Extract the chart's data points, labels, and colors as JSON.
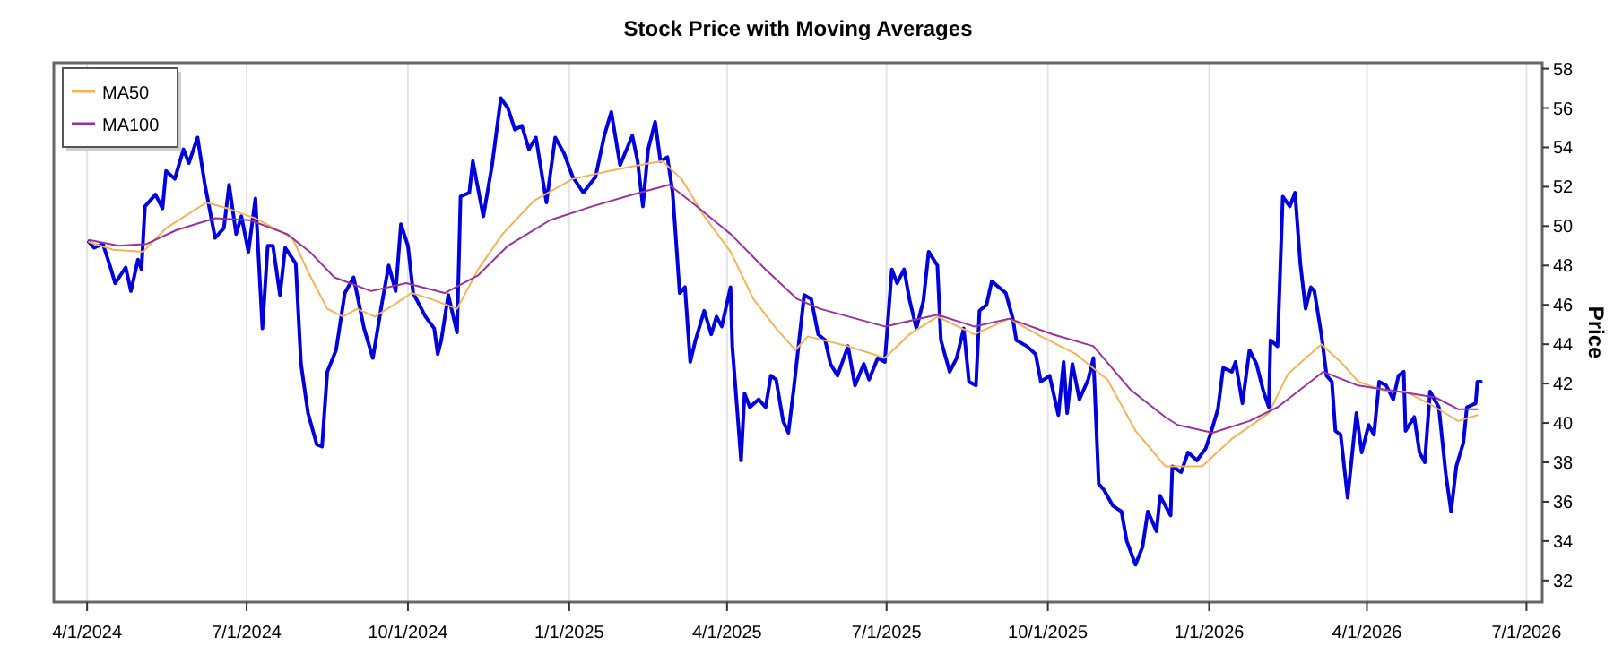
{
  "chart_data": {
    "type": "line",
    "title": "Stock Price with Moving Averages",
    "ylabel": "Price",
    "grid": "x",
    "legend": "top left",
    "line_style": "solid",
    "marker": "none",
    "xlim": [
      "2024-03-13",
      "2026-07-10"
    ],
    "ylim": [
      30.9,
      58.3
    ],
    "xticks": [
      {
        "value": "2024-04-01",
        "label": "4/1/2024"
      },
      {
        "value": "2024-07-01",
        "label": "7/1/2024"
      },
      {
        "value": "2024-10-01",
        "label": "10/1/2024"
      },
      {
        "value": "2025-01-01",
        "label": "1/1/2025"
      },
      {
        "value": "2025-04-01",
        "label": "4/1/2025"
      },
      {
        "value": "2025-07-01",
        "label": "7/1/2025"
      },
      {
        "value": "2025-10-01",
        "label": "10/1/2025"
      },
      {
        "value": "2026-01-01",
        "label": "1/1/2026"
      },
      {
        "value": "2026-04-01",
        "label": "4/1/2026"
      },
      {
        "value": "2026-07-01",
        "label": "7/1/2026"
      }
    ],
    "yticks": [
      32,
      34,
      36,
      38,
      40,
      42,
      44,
      46,
      48,
      50,
      52,
      54,
      56,
      58
    ],
    "series": [
      {
        "color": "#0000dd",
        "x": [
          "2024-04-02",
          "2024-04-05",
          "2024-04-10",
          "2024-04-14",
          "2024-04-17",
          "2024-04-23",
          "2024-04-26",
          "2024-04-30",
          "2024-05-02",
          "2024-05-04",
          "2024-05-10",
          "2024-05-14",
          "2024-05-16",
          "2024-05-21",
          "2024-05-26",
          "2024-05-29",
          "2024-06-03",
          "2024-06-07",
          "2024-06-13",
          "2024-06-18",
          "2024-06-21",
          "2024-06-25",
          "2024-06-28",
          "2024-07-02",
          "2024-07-06",
          "2024-07-10",
          "2024-07-13",
          "2024-07-16",
          "2024-07-20",
          "2024-07-23",
          "2024-07-26",
          "2024-07-29",
          "2024-08-01",
          "2024-08-05",
          "2024-08-10",
          "2024-08-13",
          "2024-08-16",
          "2024-08-21",
          "2024-08-26",
          "2024-08-31",
          "2024-09-06",
          "2024-09-11",
          "2024-09-16",
          "2024-09-20",
          "2024-09-24",
          "2024-09-27",
          "2024-10-01",
          "2024-10-04",
          "2024-10-11",
          "2024-10-16",
          "2024-10-18",
          "2024-10-20",
          "2024-10-24",
          "2024-10-29",
          "2024-10-31",
          "2024-11-05",
          "2024-11-07",
          "2024-11-13",
          "2024-11-18",
          "2024-11-23",
          "2024-11-27",
          "2024-12-01",
          "2024-12-05",
          "2024-12-09",
          "2024-12-13",
          "2024-12-19",
          "2024-12-24",
          "2024-12-29",
          "2025-01-03",
          "2025-01-09",
          "2025-01-16",
          "2025-01-21",
          "2025-01-25",
          "2025-01-30",
          "2025-02-06",
          "2025-02-09",
          "2025-02-12",
          "2025-02-15",
          "2025-02-19",
          "2025-02-22",
          "2025-02-26",
          "2025-03-01",
          "2025-03-05",
          "2025-03-08",
          "2025-03-11",
          "2025-03-14",
          "2025-03-19",
          "2025-03-23",
          "2025-03-26",
          "2025-03-29",
          "2025-04-03",
          "2025-04-04",
          "2025-04-09",
          "2025-04-11",
          "2025-04-14",
          "2025-04-19",
          "2025-04-23",
          "2025-04-26",
          "2025-04-29",
          "2025-05-03",
          "2025-05-06",
          "2025-05-09",
          "2025-05-15",
          "2025-05-19",
          "2025-05-23",
          "2025-05-27",
          "2025-05-30",
          "2025-06-03",
          "2025-06-09",
          "2025-06-13",
          "2025-06-18",
          "2025-06-21",
          "2025-06-26",
          "2025-06-30",
          "2025-07-04",
          "2025-07-07",
          "2025-07-11",
          "2025-07-14",
          "2025-07-18",
          "2025-07-22",
          "2025-07-25",
          "2025-07-30",
          "2025-08-01",
          "2025-08-06",
          "2025-08-10",
          "2025-08-14",
          "2025-08-17",
          "2025-08-21",
          "2025-08-23",
          "2025-08-27",
          "2025-08-30",
          "2025-09-03",
          "2025-09-07",
          "2025-09-11",
          "2025-09-13",
          "2025-09-19",
          "2025-09-24",
          "2025-09-27",
          "2025-10-02",
          "2025-10-07",
          "2025-10-10",
          "2025-10-12",
          "2025-10-15",
          "2025-10-19",
          "2025-10-24",
          "2025-10-27",
          "2025-10-30",
          "2025-11-02",
          "2025-11-07",
          "2025-11-12",
          "2025-11-15",
          "2025-11-20",
          "2025-11-24",
          "2025-11-27",
          "2025-12-02",
          "2025-12-04",
          "2025-12-10",
          "2025-12-11",
          "2025-12-16",
          "2025-12-20",
          "2025-12-25",
          "2025-12-30",
          "2026-01-02",
          "2026-01-06",
          "2026-01-09",
          "2026-01-14",
          "2026-01-16",
          "2026-01-20",
          "2026-01-24",
          "2026-01-28",
          "2026-02-01",
          "2026-02-04",
          "2026-02-05",
          "2026-02-09",
          "2026-02-12",
          "2026-02-16",
          "2026-02-19",
          "2026-02-22",
          "2026-02-25",
          "2026-02-28",
          "2026-03-02",
          "2026-03-06",
          "2026-03-09",
          "2026-03-12",
          "2026-03-14",
          "2026-03-17",
          "2026-03-21",
          "2026-03-26",
          "2026-03-29",
          "2026-04-02",
          "2026-04-05",
          "2026-04-08",
          "2026-04-12",
          "2026-04-16",
          "2026-04-19",
          "2026-04-22",
          "2026-04-23",
          "2026-04-28",
          "2026-05-01",
          "2026-05-04",
          "2026-05-07",
          "2026-05-12",
          "2026-05-16",
          "2026-05-19",
          "2026-05-22",
          "2026-05-26",
          "2026-05-28",
          "2026-06-02",
          "2026-06-03",
          "2026-06-05"
        ],
        "values": [
          49.2,
          48.9,
          49.1,
          48.0,
          47.1,
          47.9,
          46.7,
          48.3,
          47.8,
          51.0,
          51.6,
          50.9,
          52.8,
          52.4,
          53.9,
          53.2,
          54.5,
          52.2,
          49.4,
          49.9,
          52.1,
          49.6,
          50.5,
          48.7,
          51.4,
          44.8,
          49.0,
          49.0,
          46.5,
          48.9,
          48.5,
          48.1,
          43.0,
          40.5,
          38.9,
          38.8,
          42.6,
          43.7,
          46.6,
          47.4,
          44.8,
          43.3,
          46.0,
          48.0,
          46.7,
          50.1,
          49.0,
          46.6,
          45.4,
          44.8,
          43.5,
          44.2,
          46.5,
          44.6,
          51.5,
          51.7,
          53.3,
          50.5,
          53.1,
          56.5,
          56.0,
          54.9,
          55.1,
          53.9,
          54.5,
          51.2,
          54.5,
          53.7,
          52.5,
          51.7,
          52.5,
          54.6,
          55.8,
          53.1,
          54.6,
          53.3,
          51.0,
          53.9,
          55.3,
          53.3,
          53.5,
          51.7,
          46.6,
          46.9,
          43.1,
          44.2,
          45.7,
          44.5,
          45.4,
          44.9,
          46.9,
          43.9,
          38.1,
          41.5,
          40.8,
          41.2,
          40.8,
          42.4,
          42.2,
          40.1,
          39.5,
          41.7,
          46.5,
          46.3,
          44.5,
          44.2,
          43.0,
          42.4,
          43.9,
          41.9,
          43.0,
          42.2,
          43.3,
          43.1,
          47.8,
          47.1,
          47.8,
          46.3,
          44.8,
          46.2,
          48.7,
          48.0,
          44.2,
          42.6,
          43.3,
          44.8,
          42.1,
          41.9,
          45.7,
          46.0,
          47.2,
          46.9,
          46.6,
          45.3,
          44.2,
          43.9,
          43.5,
          42.1,
          42.4,
          40.4,
          43.1,
          40.5,
          43.0,
          41.2,
          42.2,
          43.3,
          36.9,
          36.6,
          35.8,
          35.5,
          34.0,
          32.8,
          33.7,
          35.5,
          34.5,
          36.3,
          35.3,
          37.8,
          37.5,
          38.5,
          38.1,
          38.7,
          39.5,
          40.7,
          42.8,
          42.6,
          43.1,
          41.0,
          43.7,
          43.0,
          41.6,
          40.8,
          44.2,
          43.9,
          51.5,
          51.0,
          51.7,
          48.1,
          45.8,
          46.9,
          46.7,
          44.5,
          42.4,
          42.1,
          39.6,
          39.4,
          36.2,
          40.5,
          38.5,
          39.9,
          39.4,
          42.1,
          41.9,
          41.2,
          42.4,
          42.6,
          39.6,
          40.3,
          38.5,
          38.0,
          41.6,
          40.8,
          37.4,
          35.5,
          37.8,
          39.0,
          40.8,
          41.0,
          42.1,
          42.1
        ]
      },
      {
        "name": "MA50",
        "color": "#f0b45a",
        "x": [
          "2024-04-02",
          "2024-04-16",
          "2024-05-03",
          "2024-05-16",
          "2024-06-08",
          "2024-06-20",
          "2024-07-06",
          "2024-07-27",
          "2024-08-06",
          "2024-08-16",
          "2024-08-25",
          "2024-09-02",
          "2024-09-12",
          "2024-09-23",
          "2024-10-03",
          "2024-10-14",
          "2024-10-29",
          "2024-11-10",
          "2024-11-24",
          "2024-12-12",
          "2025-01-03",
          "2025-01-24",
          "2025-02-10",
          "2025-02-23",
          "2025-03-06",
          "2025-03-19",
          "2025-04-03",
          "2025-04-16",
          "2025-04-29",
          "2025-05-10",
          "2025-05-17",
          "2025-06-09",
          "2025-06-30",
          "2025-07-14",
          "2025-07-30",
          "2025-08-20",
          "2025-09-09",
          "2025-09-27",
          "2025-10-17",
          "2025-11-04",
          "2025-11-20",
          "2025-12-07",
          "2025-12-28",
          "2026-01-14",
          "2026-02-04",
          "2026-02-15",
          "2026-03-06",
          "2026-03-17",
          "2026-03-27",
          "2026-04-12",
          "2026-04-23",
          "2026-05-10",
          "2026-05-23",
          "2026-06-03"
        ],
        "values": [
          49.2,
          48.8,
          48.7,
          49.9,
          51.2,
          50.9,
          50.4,
          49.4,
          47.5,
          45.8,
          45.4,
          45.8,
          45.4,
          46.0,
          46.6,
          46.3,
          45.8,
          47.8,
          49.6,
          51.3,
          52.4,
          52.8,
          53.1,
          53.3,
          52.4,
          50.5,
          48.7,
          46.3,
          44.8,
          43.7,
          44.4,
          43.9,
          43.3,
          44.5,
          45.4,
          44.5,
          45.3,
          44.4,
          43.5,
          42.2,
          39.6,
          37.8,
          37.8,
          39.2,
          40.5,
          42.5,
          44.0,
          43.1,
          42.1,
          41.6,
          41.6,
          40.8,
          40.1,
          40.4
        ]
      },
      {
        "name": "MA100",
        "color": "#993399",
        "x": [
          "2024-04-02",
          "2024-04-19",
          "2024-05-05",
          "2024-05-22",
          "2024-06-13",
          "2024-07-03",
          "2024-07-24",
          "2024-08-06",
          "2024-08-20",
          "2024-09-10",
          "2024-09-30",
          "2024-10-22",
          "2024-11-10",
          "2024-11-27",
          "2024-12-21",
          "2025-01-14",
          "2025-02-06",
          "2025-02-27",
          "2025-03-12",
          "2025-04-03",
          "2025-04-23",
          "2025-05-11",
          "2025-05-24",
          "2025-06-30",
          "2025-07-30",
          "2025-08-20",
          "2025-09-09",
          "2025-10-04",
          "2025-10-27",
          "2025-11-17",
          "2025-12-07",
          "2025-12-14",
          "2026-01-03",
          "2026-01-24",
          "2026-02-09",
          "2026-03-07",
          "2026-03-27",
          "2026-04-19",
          "2026-05-10",
          "2026-05-23",
          "2026-06-03"
        ],
        "values": [
          49.3,
          49.0,
          49.1,
          49.8,
          50.4,
          50.3,
          49.6,
          48.7,
          47.4,
          46.7,
          47.1,
          46.6,
          47.5,
          49.0,
          50.3,
          51.0,
          51.6,
          52.1,
          51.2,
          49.6,
          47.8,
          46.3,
          45.8,
          44.9,
          45.5,
          44.9,
          45.3,
          44.5,
          43.9,
          41.7,
          40.3,
          39.9,
          39.5,
          40.1,
          40.8,
          42.6,
          41.9,
          41.6,
          41.3,
          40.7,
          40.7
        ]
      }
    ]
  }
}
